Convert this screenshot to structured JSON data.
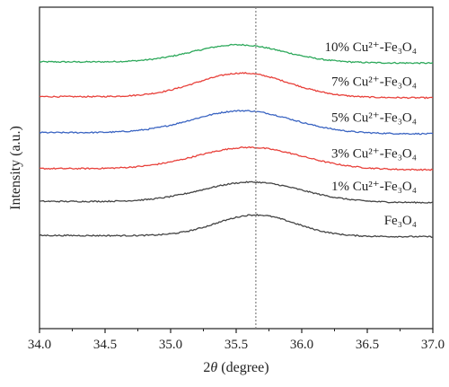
{
  "chart_data": {
    "type": "line",
    "title": "",
    "xlabel": "2θ (degree)",
    "xlabel_italic_part": "θ",
    "ylabel": "Intensity (a.u.)",
    "xlim": [
      34.0,
      37.0
    ],
    "x_ticks": [
      "34.0",
      "34.5",
      "35.0",
      "35.5",
      "36.0",
      "36.5",
      "37.0"
    ],
    "y_ticks_shown": false,
    "grid": false,
    "legend": "inline-right",
    "reference_line": {
      "x": 35.65,
      "style": "dotted",
      "color": "#808080"
    },
    "series": [
      {
        "name": "10% Cu²⁺-Fe₃O₄",
        "color": "#2ca85a",
        "baseline": 0.83,
        "peak_center": 35.52,
        "peak_width": 0.35,
        "peak_height": 0.055
      },
      {
        "name": "7% Cu²⁺-Fe₃O₄",
        "color": "#e8403a",
        "baseline": 0.722,
        "peak_center": 35.55,
        "peak_width": 0.35,
        "peak_height": 0.075
      },
      {
        "name": "5% Cu²⁺-Fe₃O₄",
        "color": "#3a64c2",
        "baseline": 0.61,
        "peak_center": 35.55,
        "peak_width": 0.38,
        "peak_height": 0.07
      },
      {
        "name": "3% Cu²⁺-Fe₃O₄",
        "color": "#e8403a",
        "baseline": 0.498,
        "peak_center": 35.6,
        "peak_width": 0.4,
        "peak_height": 0.068
      },
      {
        "name": "1% Cu²⁺-Fe₃O₄",
        "color": "#444444",
        "baseline": 0.396,
        "peak_center": 35.62,
        "peak_width": 0.38,
        "peak_height": 0.062
      },
      {
        "name": "Fe₃O₄",
        "color": "#444444",
        "baseline": 0.29,
        "peak_center": 35.65,
        "peak_width": 0.3,
        "peak_height": 0.066
      }
    ]
  }
}
